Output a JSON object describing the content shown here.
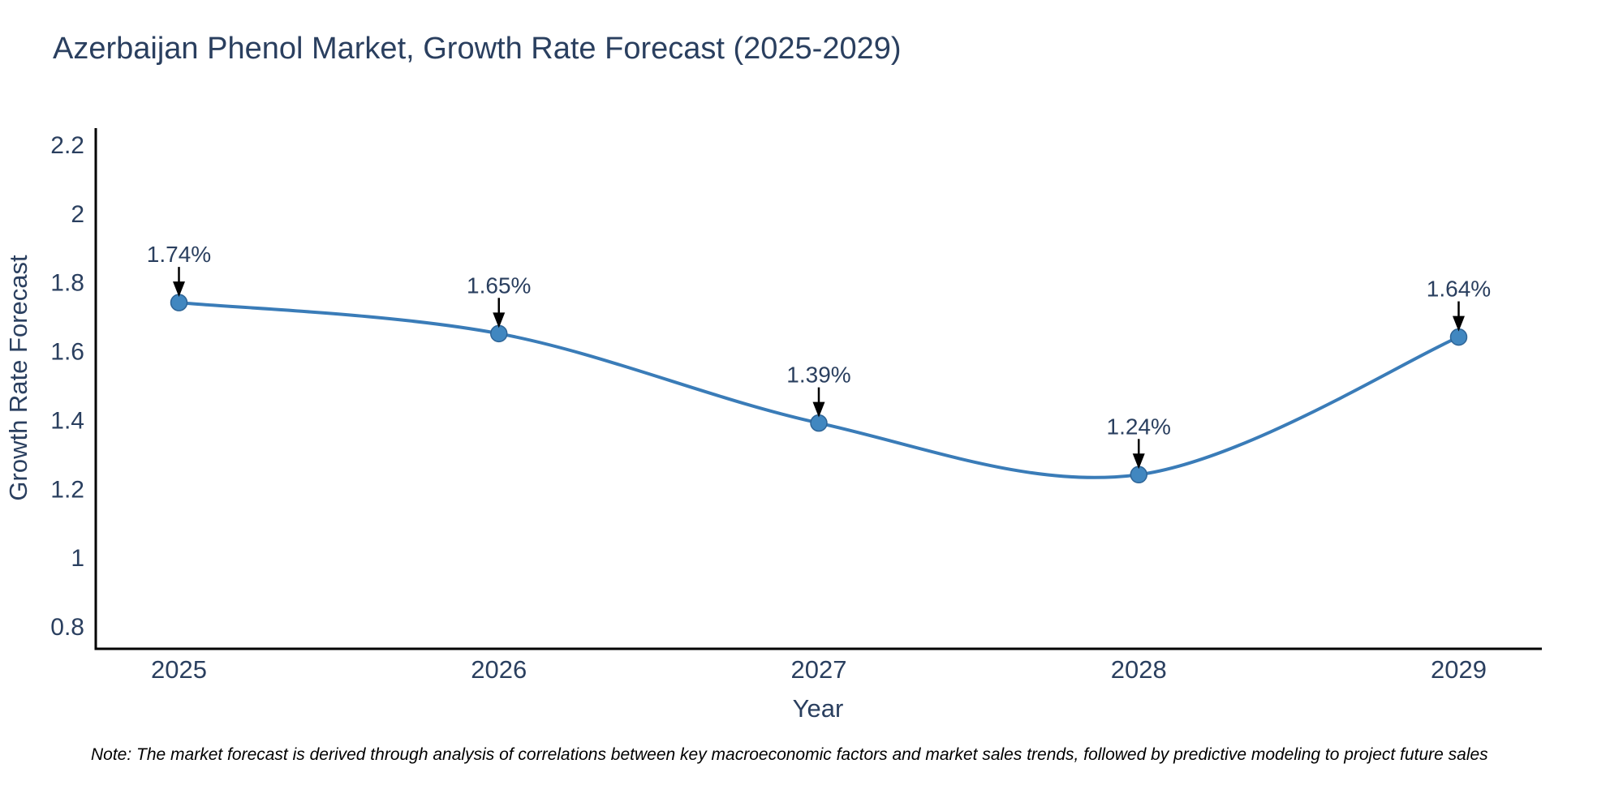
{
  "title": "Azerbaijan Phenol Market, Growth Rate Forecast (2025-2029)",
  "note": {
    "text": "Note: The market forecast is derived through analysis of correlations between key macroeconomic factors and market sales trends, followed by predictive modeling to project future sales"
  },
  "chart_data": {
    "type": "line",
    "title": "Azerbaijan Phenol Market, Growth Rate Forecast (2025-2029)",
    "xlabel": "Year",
    "ylabel": "Growth Rate Forecast",
    "x": [
      2025,
      2026,
      2027,
      2028,
      2029
    ],
    "values": [
      1.74,
      1.65,
      1.39,
      1.24,
      1.64
    ],
    "point_labels": [
      "1.74%",
      "1.65%",
      "1.39%",
      "1.24%",
      "1.64%"
    ],
    "xtick_labels": [
      "2025",
      "2026",
      "2027",
      "2028",
      "2029"
    ],
    "yticks": [
      0.8,
      1,
      1.2,
      1.4,
      1.6,
      1.8,
      2,
      2.2
    ],
    "ytick_labels": [
      "0.8",
      "1",
      "1.2",
      "1.4",
      "1.6",
      "1.8",
      "2",
      "2.2"
    ],
    "xlim": [
      2024.74,
      2029.26
    ],
    "ylim": [
      0.734,
      2.247
    ],
    "line_shape": "spline",
    "grid": false,
    "legend": "none",
    "colors": {
      "line": "#3a7cb8",
      "marker_fill": "#4187c0",
      "marker_stroke": "#2e6496",
      "axis_line": "#000000",
      "annotation_arrow": "#000000",
      "annotation_text": "#2a3f5f",
      "tick_text": "#2a3f5f",
      "title_text": "#2a3f5f",
      "note_text": "#000000",
      "background": "#ffffff"
    }
  }
}
